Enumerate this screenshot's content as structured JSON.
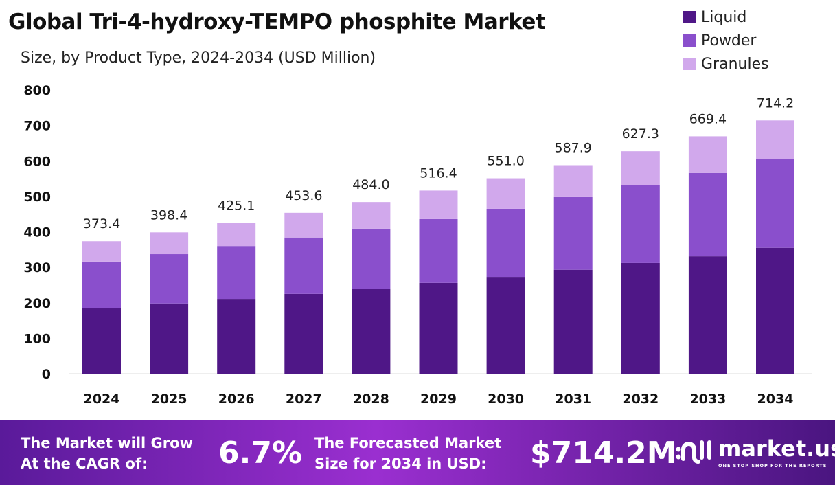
{
  "chart_data": {
    "type": "bar",
    "stacked": true,
    "title": "Global Tri-4-hydroxy-TEMPO phosphite Market",
    "subtitle": "Size, by Product Type, 2024-2034 (USD Million)",
    "categories": [
      "2024",
      "2025",
      "2026",
      "2027",
      "2028",
      "2029",
      "2030",
      "2031",
      "2032",
      "2033",
      "2034"
    ],
    "totals": [
      "373.4",
      "398.4",
      "425.1",
      "453.6",
      "484.0",
      "516.4",
      "551.0",
      "587.9",
      "627.3",
      "669.4",
      "714.2"
    ],
    "series": [
      {
        "name": "Liquid",
        "color": "#4f1787",
        "values": [
          184,
          198,
          211,
          225,
          240,
          256,
          273,
          293,
          312,
          331,
          355
        ]
      },
      {
        "name": "Powder",
        "color": "#8a4fcc",
        "values": [
          132,
          139,
          149,
          159,
          169,
          180,
          192,
          205,
          219,
          235,
          250
        ]
      },
      {
        "name": "Granules",
        "color": "#d1a8ec",
        "values": [
          57.4,
          61.4,
          65.1,
          69.6,
          75.0,
          80.4,
          86.0,
          89.9,
          96.3,
          103.4,
          109.2
        ]
      }
    ],
    "ylim": [
      0,
      800
    ],
    "yticks": [
      "0",
      "100",
      "200",
      "300",
      "400",
      "500",
      "600",
      "700",
      "800"
    ],
    "grid": false,
    "legend": "top-right"
  },
  "footer": {
    "cagr_label_1": "The Market will Grow",
    "cagr_label_2": "At the CAGR of:",
    "cagr_value": "6.7%",
    "forecast_label_1": "The Forecasted Market",
    "forecast_label_2": "Size for 2034 in USD:",
    "forecast_value": "$714.2M",
    "logo_name": "market.us",
    "logo_tagline": "ONE STOP SHOP FOR THE REPORTS"
  }
}
